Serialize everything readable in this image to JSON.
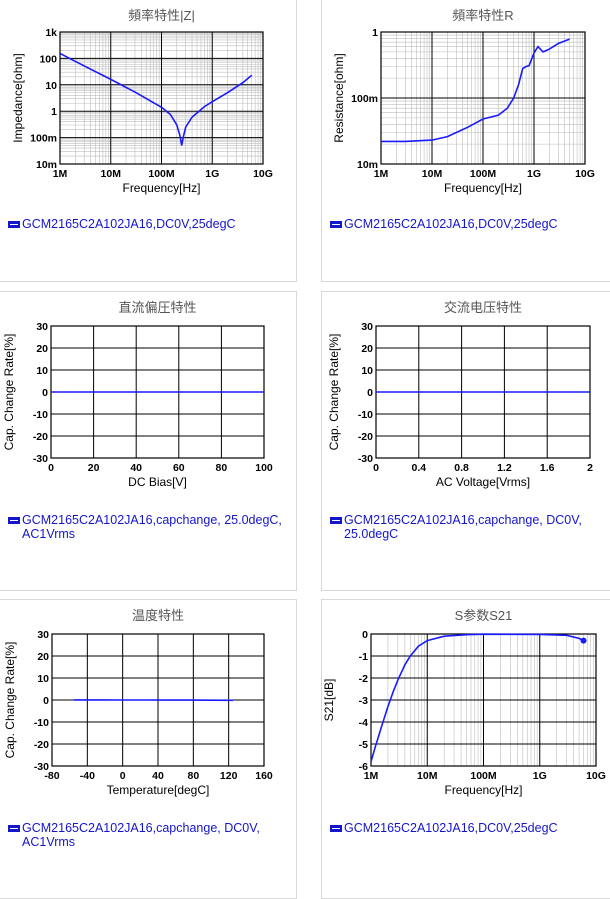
{
  "chart_data": [
    {
      "type": "line",
      "title": "頻率特性|Z|",
      "xlabel": "Frequency[Hz]",
      "ylabel": "Impedance[ohm]",
      "xscale": "log",
      "yscale": "log",
      "xlim": [
        1000000,
        10000000000
      ],
      "ylim": [
        0.01,
        1000
      ],
      "xticks": [
        {
          "v": 1000000,
          "label": "1M"
        },
        {
          "v": 10000000,
          "label": "10M"
        },
        {
          "v": 100000000,
          "label": "100M"
        },
        {
          "v": 1000000000,
          "label": "1G"
        },
        {
          "v": 10000000000,
          "label": "10G"
        }
      ],
      "yticks": [
        {
          "v": 1000,
          "label": "1k"
        },
        {
          "v": 100,
          "label": "100"
        },
        {
          "v": 10,
          "label": "10"
        },
        {
          "v": 1,
          "label": "1"
        },
        {
          "v": 0.1,
          "label": "100m"
        },
        {
          "v": 0.01,
          "label": "10m"
        }
      ],
      "grid": true,
      "series": [
        {
          "name": "GCM2165C2A102JA16,DC0V,25degC",
          "x": [
            1000000,
            3000000,
            10000000,
            30000000,
            100000000,
            150000000,
            200000000,
            230000000,
            250000000,
            270000000,
            300000000,
            400000000,
            700000000,
            1000000000,
            2000000000,
            4000000000,
            6000000000
          ],
          "y": [
            155,
            52,
            16,
            5.3,
            1.4,
            0.75,
            0.3,
            0.12,
            0.05,
            0.11,
            0.25,
            0.6,
            1.5,
            2.3,
            5,
            12,
            23
          ]
        }
      ],
      "legend": [
        "GCM2165C2A102JA16,DC0V,25degC"
      ],
      "legend_position": "bottom"
    },
    {
      "type": "line",
      "title": "頻率特性R",
      "xlabel": "Frequency[Hz]",
      "ylabel": "Resistance[ohm]",
      "xscale": "log",
      "yscale": "log",
      "xlim": [
        1000000,
        10000000000
      ],
      "ylim": [
        0.01,
        1
      ],
      "xticks": [
        {
          "v": 1000000,
          "label": "1M"
        },
        {
          "v": 10000000,
          "label": "10M"
        },
        {
          "v": 100000000,
          "label": "100M"
        },
        {
          "v": 1000000000,
          "label": "1G"
        },
        {
          "v": 10000000000,
          "label": "10G"
        }
      ],
      "yticks": [
        {
          "v": 1,
          "label": "1"
        },
        {
          "v": 0.1,
          "label": "100m"
        },
        {
          "v": 0.01,
          "label": "10m"
        }
      ],
      "grid": true,
      "series": [
        {
          "name": "GCM2165C2A102JA16,DC0V,25degC",
          "x": [
            1000000,
            3000000,
            10000000,
            20000000,
            50000000,
            100000000,
            200000000,
            300000000,
            400000000,
            500000000,
            600000000,
            700000000,
            800000000,
            1000000000,
            1200000000,
            1500000000,
            2000000000,
            3000000000,
            5000000000
          ],
          "y": [
            0.022,
            0.022,
            0.023,
            0.026,
            0.036,
            0.048,
            0.055,
            0.07,
            0.1,
            0.16,
            0.28,
            0.3,
            0.31,
            0.48,
            0.6,
            0.5,
            0.55,
            0.67,
            0.78
          ]
        }
      ],
      "legend": [
        "GCM2165C2A102JA16,DC0V,25degC"
      ],
      "legend_position": "bottom"
    },
    {
      "type": "line",
      "title": "直流偏圧特性",
      "xlabel": "DC Bias[V]",
      "ylabel": "Cap. Change Rate[%]",
      "xlim": [
        0,
        100
      ],
      "ylim": [
        -30,
        30
      ],
      "xticks": [
        {
          "v": 0,
          "label": "0"
        },
        {
          "v": 20,
          "label": "20"
        },
        {
          "v": 40,
          "label": "40"
        },
        {
          "v": 60,
          "label": "60"
        },
        {
          "v": 80,
          "label": "80"
        },
        {
          "v": 100,
          "label": "100"
        }
      ],
      "yticks": [
        {
          "v": 30,
          "label": "30"
        },
        {
          "v": 20,
          "label": "20"
        },
        {
          "v": 10,
          "label": "10"
        },
        {
          "v": 0,
          "label": "0"
        },
        {
          "v": -10,
          "label": "-10"
        },
        {
          "v": -20,
          "label": "-20"
        },
        {
          "v": -30,
          "label": "-30"
        }
      ],
      "grid": true,
      "series": [
        {
          "name": "GCM2165C2A102JA16,capchange, 25.0degC, AC1Vrms",
          "x": [
            0,
            100
          ],
          "y": [
            0,
            0
          ]
        }
      ],
      "legend": [
        "GCM2165C2A102JA16,capchange, 25.0degC, AC1Vrms"
      ],
      "legend_position": "bottom"
    },
    {
      "type": "line",
      "title": "交流电压特性",
      "xlabel": "AC Voltage[Vrms]",
      "ylabel": "Cap. Change Rate[%]",
      "xlim": [
        0,
        2
      ],
      "ylim": [
        -30,
        30
      ],
      "xticks": [
        {
          "v": 0,
          "label": "0"
        },
        {
          "v": 0.4,
          "label": "0.4"
        },
        {
          "v": 0.8,
          "label": "0.8"
        },
        {
          "v": 1.2,
          "label": "1.2"
        },
        {
          "v": 1.6,
          "label": "1.6"
        },
        {
          "v": 2,
          "label": "2"
        }
      ],
      "yticks": [
        {
          "v": 30,
          "label": "30"
        },
        {
          "v": 20,
          "label": "20"
        },
        {
          "v": 10,
          "label": "10"
        },
        {
          "v": 0,
          "label": "0"
        },
        {
          "v": -10,
          "label": "-10"
        },
        {
          "v": -20,
          "label": "-20"
        },
        {
          "v": -30,
          "label": "-30"
        }
      ],
      "grid": true,
      "series": [
        {
          "name": "GCM2165C2A102JA16,capchange, DC0V, 25.0degC",
          "x": [
            0,
            2
          ],
          "y": [
            0,
            0
          ]
        }
      ],
      "legend": [
        "GCM2165C2A102JA16,capchange, DC0V, 25.0degC"
      ],
      "legend_position": "bottom"
    },
    {
      "type": "line",
      "title": "温度特性",
      "xlabel": "Temperature[degC]",
      "ylabel": "Cap. Change Rate[%]",
      "xlim": [
        -80,
        160
      ],
      "ylim": [
        -30,
        30
      ],
      "xticks": [
        {
          "v": -80,
          "label": "-80"
        },
        {
          "v": -40,
          "label": "-40"
        },
        {
          "v": 0,
          "label": "0"
        },
        {
          "v": 40,
          "label": "40"
        },
        {
          "v": 80,
          "label": "80"
        },
        {
          "v": 120,
          "label": "120"
        },
        {
          "v": 160,
          "label": "160"
        }
      ],
      "yticks": [
        {
          "v": 30,
          "label": "30"
        },
        {
          "v": 20,
          "label": "20"
        },
        {
          "v": 10,
          "label": "10"
        },
        {
          "v": 0,
          "label": "0"
        },
        {
          "v": -10,
          "label": "-10"
        },
        {
          "v": -20,
          "label": "-20"
        },
        {
          "v": -30,
          "label": "-30"
        }
      ],
      "grid": true,
      "series": [
        {
          "name": "GCM2165C2A102JA16,capchange, DC0V, AC1Vrms",
          "x": [
            -55,
            -25,
            0,
            25,
            50,
            75,
            100,
            125
          ],
          "y": [
            0.05,
            0.03,
            0.02,
            0,
            -0.03,
            -0.06,
            -0.1,
            -0.15
          ]
        }
      ],
      "legend": [
        "GCM2165C2A102JA16,capchange, DC0V, AC1Vrms"
      ],
      "legend_position": "bottom"
    },
    {
      "type": "line",
      "title": "S参数S21",
      "xlabel": "Frequency[Hz]",
      "ylabel": "S21[dB]",
      "xscale": "log",
      "xlim": [
        1000000,
        10000000000
      ],
      "ylim": [
        -6,
        0
      ],
      "xticks": [
        {
          "v": 1000000,
          "label": "1M"
        },
        {
          "v": 10000000,
          "label": "10M"
        },
        {
          "v": 100000000,
          "label": "100M"
        },
        {
          "v": 1000000000,
          "label": "1G"
        },
        {
          "v": 10000000000,
          "label": "10G"
        }
      ],
      "yticks": [
        {
          "v": 0,
          "label": "0"
        },
        {
          "v": -1,
          "label": "-1"
        },
        {
          "v": -2,
          "label": "-2"
        },
        {
          "v": -3,
          "label": "-3"
        },
        {
          "v": -4,
          "label": "-4"
        },
        {
          "v": -5,
          "label": "-5"
        },
        {
          "v": -6,
          "label": "-6"
        }
      ],
      "grid": true,
      "series": [
        {
          "name": "GCM2165C2A102JA16,DC0V,25degC",
          "x": [
            1000000,
            1200000,
            1500000,
            2000000,
            2500000,
            3000000,
            4000000,
            5000000,
            7000000,
            10000000,
            20000000,
            50000000,
            100000000,
            1000000000,
            3000000000,
            5000000000,
            6000000000
          ],
          "y": [
            -5.8,
            -5.1,
            -4.3,
            -3.3,
            -2.6,
            -2.1,
            -1.4,
            -1.0,
            -0.55,
            -0.3,
            -0.1,
            -0.03,
            -0.01,
            -0.02,
            -0.06,
            -0.2,
            -0.3
          ],
          "end_marker": true
        }
      ],
      "legend": [
        "GCM2165C2A102JA16,DC0V,25degC"
      ],
      "legend_position": "bottom"
    }
  ]
}
